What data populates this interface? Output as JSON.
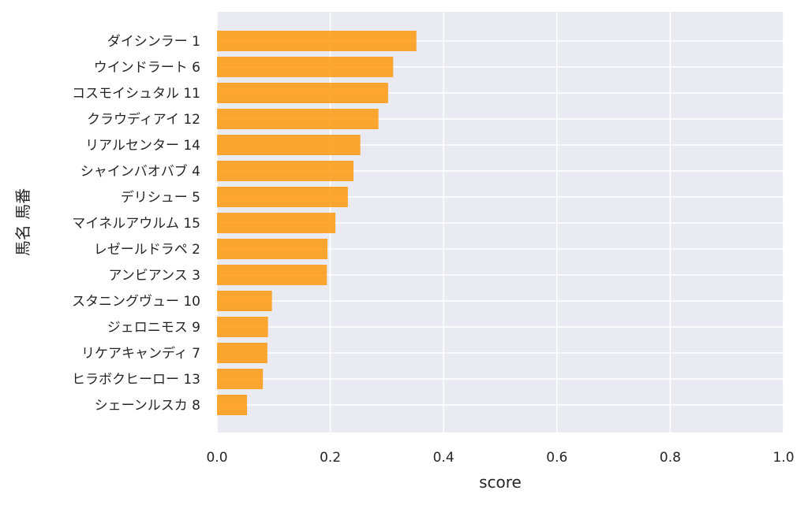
{
  "chart_data": {
    "type": "bar",
    "orientation": "horizontal",
    "xlabel": "score",
    "ylabel": "馬名 馬番",
    "xlim": [
      0.0,
      1.0
    ],
    "xticks": [
      "0.0",
      "0.2",
      "0.4",
      "0.6",
      "0.8",
      "1.0"
    ],
    "grid": true,
    "categories": [
      "ダイシンラー 1",
      "ウインドラート 6",
      "コスモイシュタル 11",
      "クラウディアイ 12",
      "リアルセンター 14",
      "シャインバオバブ 4",
      "デリシュー 5",
      "マイネルアウルム 15",
      "レゼールドラペ 2",
      "アンビアンス 3",
      "スタニングヴュー 10",
      "ジェロニモス 9",
      "リケアキャンディ 7",
      "ヒラボクヒーロー 13",
      "シェーンルスカ 8"
    ],
    "values": [
      0.352,
      0.311,
      0.302,
      0.285,
      0.253,
      0.241,
      0.231,
      0.209,
      0.195,
      0.194,
      0.097,
      0.09,
      0.089,
      0.081,
      0.053
    ],
    "colors": {
      "bar": "#ff9400",
      "plot_bg": "#eaeaf2",
      "grid": "#ffffff",
      "text": "#262626"
    }
  }
}
